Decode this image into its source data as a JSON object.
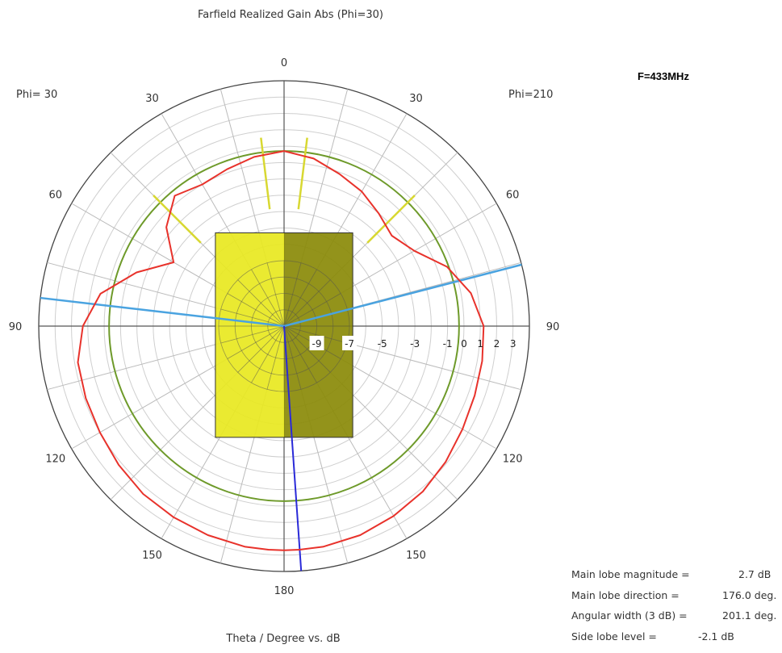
{
  "title": "Farfield Realized Gain Abs (Phi=30)",
  "frequency_label": "F=433MHz",
  "phi_left": "Phi= 30",
  "phi_right": "Phi=210",
  "xlabel": "Theta / Degree vs. dB",
  "stats": [
    {
      "label": "Main lobe magnitude =",
      "value": "2.7 dB"
    },
    {
      "label": "Main lobe direction =",
      "value": "176.0 deg."
    },
    {
      "label": "Angular width (3 dB) =",
      "value": "201.1 deg."
    },
    {
      "label": "Side lobe level =",
      "value": "-2.1 dB"
    }
  ],
  "colors": {
    "gain_curve": "#e8322b",
    "reference_circle": "#6e9a2a",
    "beamwidth_lines": "#4aa3e0",
    "main_lobe_line": "#2a2ad8",
    "sidelobe_markers": "#d8d832",
    "box_left": "#e8e820",
    "box_right": "#8a8a08"
  },
  "chart_data": {
    "type": "polar",
    "title": "Farfield Realized Gain Abs (Phi=30)",
    "units": "dB",
    "angle_labels": {
      "left": [
        "0",
        "30",
        "60",
        "90",
        "120",
        "150",
        "180"
      ],
      "right": [
        "30",
        "60",
        "90",
        "120",
        "150"
      ]
    },
    "radial_range": [
      -11,
      4
    ],
    "radial_tick_labels": [
      "-9",
      "-7",
      "-5",
      "-3",
      "-1",
      "0",
      "1",
      "2",
      "3"
    ],
    "radial_tick_values": [
      -9,
      -7,
      -5,
      -3,
      -1,
      0,
      1,
      2,
      3
    ],
    "reference_level_db": -0.3,
    "series": [
      {
        "angles_deg": [
          0,
          10,
          20,
          30,
          40,
          50,
          60,
          70,
          80,
          90,
          100,
          110,
          120,
          130,
          140,
          150,
          160,
          170,
          176,
          180
        ],
        "left_db": [
          -0.3,
          -0.5,
          -0.8,
          -1.0,
          -0.6,
          -1.6,
          -3.2,
          -1.4,
          0.4,
          1.3,
          1.8,
          1.9,
          2.0,
          2.2,
          2.4,
          2.5,
          2.6,
          2.7,
          2.7,
          2.7
        ],
        "right_db": [
          -0.3,
          -0.6,
          -1.1,
          -1.5,
          -2.0,
          -2.4,
          -1.8,
          -0.4,
          0.6,
          1.2,
          1.3,
          1.4,
          1.6,
          1.9,
          2.2,
          2.4,
          2.6,
          2.7,
          2.7,
          2.7
        ]
      }
    ],
    "main_lobe_direction_deg": 176,
    "beamwidth_edges_deg": [
      75.5,
      276.6
    ],
    "sidelobe_marker_angles_deg": [
      -45,
      -7,
      7,
      45
    ]
  }
}
